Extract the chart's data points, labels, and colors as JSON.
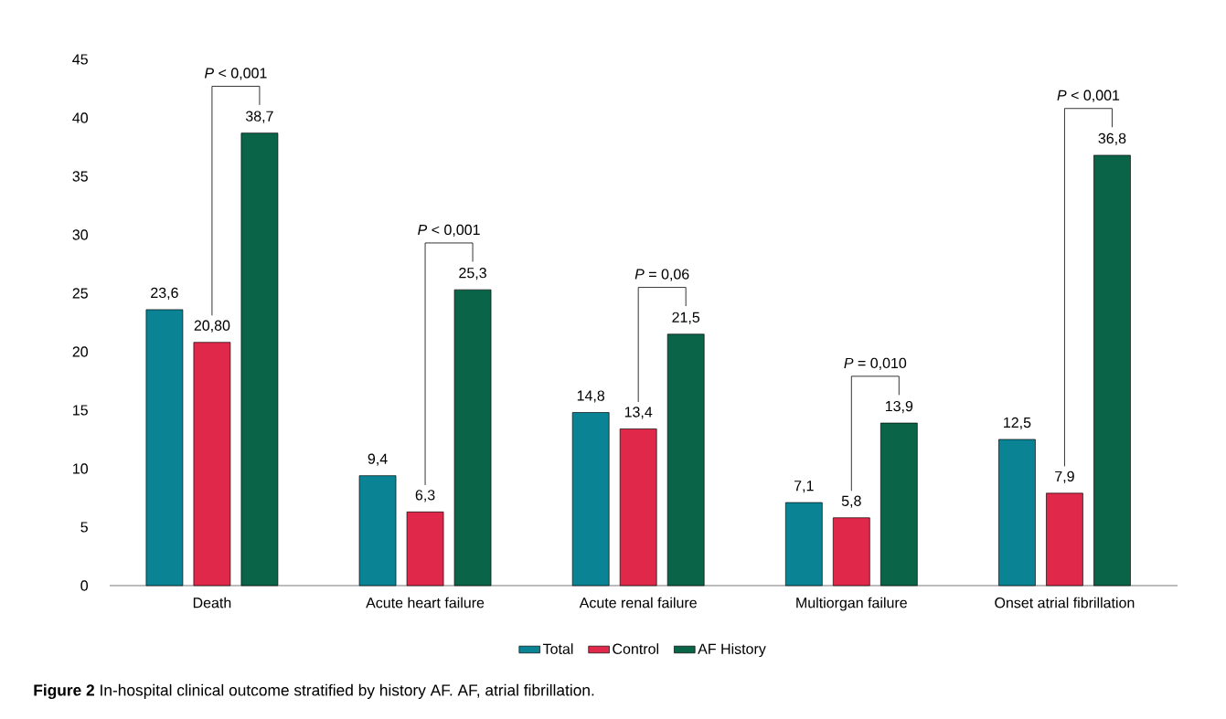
{
  "chart_data": {
    "type": "bar",
    "categories": [
      "Death",
      "Acute heart failure",
      "Acute renal failure",
      "Multiorgan failure",
      "Onset atrial fibrillation"
    ],
    "series": [
      {
        "name": "Total",
        "color": "#0a8494",
        "values": [
          23.6,
          9.4,
          14.8,
          7.1,
          12.5
        ],
        "value_labels": [
          "23,6",
          "9,4",
          "14,8",
          "7,1",
          "12,5"
        ]
      },
      {
        "name": "Control",
        "color": "#e0294a",
        "values": [
          20.8,
          6.3,
          13.4,
          5.8,
          7.9
        ],
        "value_labels": [
          "20,80",
          "6,3",
          "13,4",
          "5,8",
          "7,9"
        ]
      },
      {
        "name": "AF History",
        "color": "#0a6448",
        "values": [
          38.7,
          25.3,
          21.5,
          13.9,
          36.8
        ],
        "value_labels": [
          "38,7",
          "25,3",
          "21,5",
          "13,9",
          "36,8"
        ]
      }
    ],
    "ylim": [
      0,
      45
    ],
    "yticks": [
      0,
      5,
      10,
      15,
      20,
      25,
      30,
      35,
      40,
      45
    ],
    "legend": "bottom",
    "annotations": [
      "*P* < 0,001",
      "*P* < 0,001",
      "*P* = 0,06",
      "*P* = 0,010",
      "*P* < 0,001",
      "**Figure 2** In-hospital clinical outcome stratified by history AF. AF, atrial fibrillation."
    ]
  }
}
